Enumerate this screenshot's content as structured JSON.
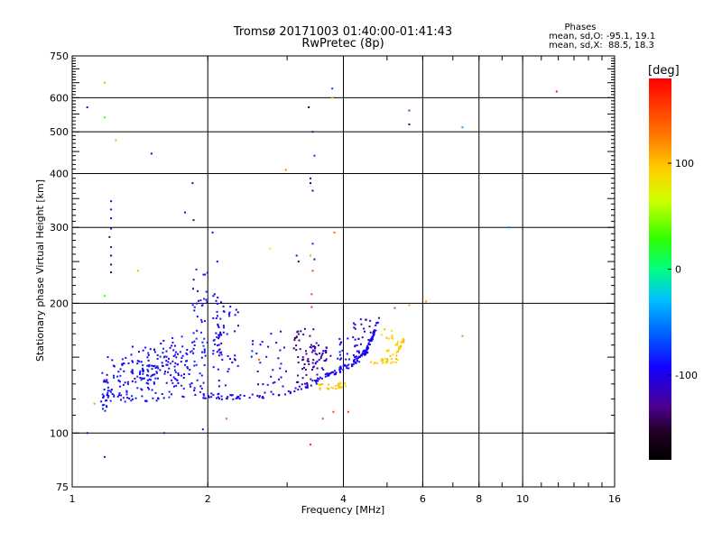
{
  "chart_data": {
    "type": "scatter",
    "title": "Tromsø 20171003 01:40:00-01:41:43",
    "subtitle": "RwPretec (8p)",
    "xlabel": "Frequency [MHz]",
    "ylabel": "Stationary phase Virtual Height [km]",
    "x_scale": "log2",
    "y_scale": "log",
    "xlim": [
      1,
      16
    ],
    "ylim": [
      75,
      750
    ],
    "x_ticks": [
      1,
      2,
      4,
      6,
      8,
      10,
      16
    ],
    "x_tick_labels": [
      "1",
      "2",
      "4",
      "6",
      "8",
      "10",
      "16"
    ],
    "y_ticks": [
      75,
      100,
      200,
      300,
      400,
      500,
      600,
      750
    ],
    "y_tick_labels": [
      "75",
      "100",
      "200",
      "300",
      "400",
      "500",
      "600",
      "750"
    ],
    "grid": true,
    "stats": {
      "heading": "Phases",
      "line1": "mean, sd,O: -95.1, 19.1",
      "line2": "mean, sd,X:  88.5, 18.3"
    },
    "colorbar": {
      "label": "[deg]",
      "range": [
        -180,
        180
      ],
      "ticks": [
        100,
        0,
        -100
      ],
      "tick_labels": [
        "100",
        "0",
        "-100"
      ]
    },
    "segments": [
      {
        "x0": 1.16,
        "x1": 1.2,
        "y0": 110,
        "y1": 142,
        "count": 25,
        "phase": -95
      },
      {
        "x0": 1.2,
        "x1": 1.55,
        "y0": 118,
        "y1": 150,
        "count": 110,
        "phase": -90
      },
      {
        "x0": 1.35,
        "x1": 1.8,
        "y0": 130,
        "y1": 160,
        "count": 60,
        "phase": -98
      },
      {
        "x0": 1.55,
        "x1": 2.0,
        "y0": 120,
        "y1": 168,
        "count": 90,
        "phase": -90
      },
      {
        "x0": 1.85,
        "x1": 2.0,
        "y0": 150,
        "y1": 240,
        "count": 30,
        "phase": -92
      },
      {
        "x0": 2.05,
        "x1": 2.15,
        "y0": 140,
        "y1": 215,
        "count": 35,
        "phase": -95
      },
      {
        "x0": 2.1,
        "x1": 2.35,
        "y0": 125,
        "y1": 200,
        "count": 35,
        "phase": -100
      },
      {
        "x0": 2.5,
        "x1": 3.0,
        "y0": 128,
        "y1": 175,
        "count": 30,
        "phase": -97
      },
      {
        "x0": 3.1,
        "x1": 3.5,
        "y0": 130,
        "y1": 175,
        "count": 45,
        "phase": -130
      },
      {
        "x0": 3.3,
        "x1": 3.75,
        "y0": 140,
        "y1": 160,
        "count": 40,
        "phase": -118
      },
      {
        "x0": 3.85,
        "x1": 4.5,
        "y0": 146,
        "y1": 168,
        "count": 30,
        "phase": -95
      },
      {
        "x0": 4.2,
        "x1": 4.6,
        "y0": 150,
        "y1": 185,
        "count": 25,
        "phase": -110
      },
      {
        "x0": 4.8,
        "x1": 5.3,
        "y0": 145,
        "y1": 175,
        "count": 25,
        "phase": 95
      }
    ],
    "curves": [
      {
        "x": [
          1.95,
          2.4,
          3.0,
          3.5,
          3.8,
          4.2,
          4.5,
          4.65,
          4.8
        ],
        "y": [
          122,
          121,
          124,
          132,
          138,
          145,
          155,
          168,
          185
        ],
        "count": 170,
        "phase": -98
      },
      {
        "x": [
          3.5,
          3.8,
          4.05
        ],
        "y": [
          128,
          128,
          130
        ],
        "count": 30,
        "phase": 95
      },
      {
        "x": [
          4.6,
          5.0,
          5.3,
          5.45
        ],
        "y": [
          145,
          147,
          155,
          165
        ],
        "count": 40,
        "phase": 95
      }
    ],
    "points": [
      {
        "x": 1.08,
        "y": 570,
        "phase": -100
      },
      {
        "x": 1.08,
        "y": 100,
        "phase": -100
      },
      {
        "x": 1.12,
        "y": 117,
        "phase": 120
      },
      {
        "x": 1.18,
        "y": 650,
        "phase": 110
      },
      {
        "x": 1.18,
        "y": 540,
        "phase": 30
      },
      {
        "x": 1.18,
        "y": 208,
        "phase": 30
      },
      {
        "x": 1.18,
        "y": 88,
        "phase": -110
      },
      {
        "x": 1.22,
        "y": 345,
        "phase": -110
      },
      {
        "x": 1.22,
        "y": 330,
        "phase": -110
      },
      {
        "x": 1.22,
        "y": 315,
        "phase": -115
      },
      {
        "x": 1.22,
        "y": 298,
        "phase": -118
      },
      {
        "x": 1.21,
        "y": 285,
        "phase": -130
      },
      {
        "x": 1.22,
        "y": 270,
        "phase": -130
      },
      {
        "x": 1.22,
        "y": 258,
        "phase": -140
      },
      {
        "x": 1.22,
        "y": 246,
        "phase": -140
      },
      {
        "x": 1.22,
        "y": 236,
        "phase": -140
      },
      {
        "x": 1.2,
        "y": 150,
        "phase": -100
      },
      {
        "x": 1.25,
        "y": 478,
        "phase": 110
      },
      {
        "x": 1.4,
        "y": 238,
        "phase": 40
      },
      {
        "x": 1.5,
        "y": 445,
        "phase": -100
      },
      {
        "x": 1.6,
        "y": 100,
        "phase": -100
      },
      {
        "x": 1.78,
        "y": 325,
        "phase": -110
      },
      {
        "x": 1.85,
        "y": 380,
        "phase": -110
      },
      {
        "x": 1.86,
        "y": 312,
        "phase": -140
      },
      {
        "x": 1.95,
        "y": 102,
        "phase": -100
      },
      {
        "x": 2.05,
        "y": 292,
        "phase": -100
      },
      {
        "x": 2.1,
        "y": 250,
        "phase": -100
      },
      {
        "x": 2.2,
        "y": 108,
        "phase": 140
      },
      {
        "x": 2.6,
        "y": 148,
        "phase": 140
      },
      {
        "x": 2.75,
        "y": 268,
        "phase": 70
      },
      {
        "x": 2.98,
        "y": 408,
        "phase": 120
      },
      {
        "x": 3.15,
        "y": 258,
        "phase": -120
      },
      {
        "x": 3.18,
        "y": 250,
        "phase": -140
      },
      {
        "x": 3.35,
        "y": 570,
        "phase": -160
      },
      {
        "x": 3.38,
        "y": 390,
        "phase": -120
      },
      {
        "x": 3.38,
        "y": 380,
        "phase": -150
      },
      {
        "x": 3.42,
        "y": 365,
        "phase": -110
      },
      {
        "x": 3.42,
        "y": 500,
        "phase": -130
      },
      {
        "x": 3.45,
        "y": 440,
        "phase": -80
      },
      {
        "x": 3.42,
        "y": 275,
        "phase": -80
      },
      {
        "x": 3.38,
        "y": 258,
        "phase": 40
      },
      {
        "x": 3.45,
        "y": 253,
        "phase": -120
      },
      {
        "x": 3.42,
        "y": 238,
        "phase": 150
      },
      {
        "x": 3.4,
        "y": 210,
        "phase": 150
      },
      {
        "x": 3.4,
        "y": 196,
        "phase": 150
      },
      {
        "x": 3.38,
        "y": 94,
        "phase": 160
      },
      {
        "x": 3.6,
        "y": 108,
        "phase": 150
      },
      {
        "x": 3.78,
        "y": 630,
        "phase": -70
      },
      {
        "x": 3.78,
        "y": 600,
        "phase": 110
      },
      {
        "x": 3.82,
        "y": 292,
        "phase": 140
      },
      {
        "x": 3.8,
        "y": 112,
        "phase": 150
      },
      {
        "x": 4.1,
        "y": 112,
        "phase": 150
      },
      {
        "x": 5.2,
        "y": 195,
        "phase": 150
      },
      {
        "x": 5.6,
        "y": 560,
        "phase": -60
      },
      {
        "x": 5.6,
        "y": 520,
        "phase": -120
      },
      {
        "x": 5.6,
        "y": 198,
        "phase": 110
      },
      {
        "x": 6.1,
        "y": 202,
        "phase": 120
      },
      {
        "x": 7.35,
        "y": 512,
        "phase": -40
      },
      {
        "x": 7.35,
        "y": 168,
        "phase": 120
      },
      {
        "x": 9.3,
        "y": 300,
        "phase": -50
      },
      {
        "x": 11.9,
        "y": 620,
        "phase": 175
      }
    ]
  }
}
